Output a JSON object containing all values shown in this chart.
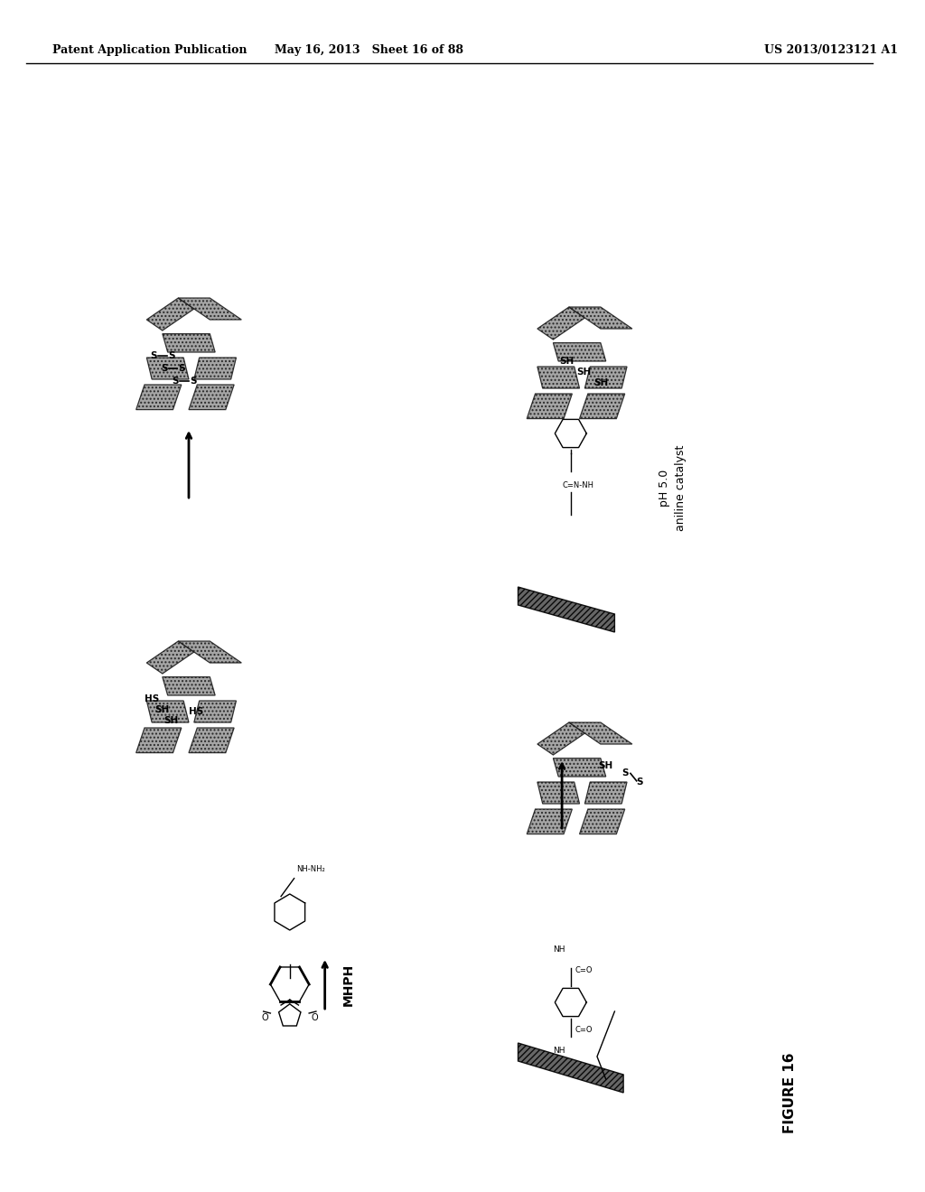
{
  "header_left": "Patent Application Publication",
  "header_mid": "May 16, 2013   Sheet 16 of 88",
  "header_right": "US 2013/0123121 A1",
  "figure_label": "FIGURE 16",
  "label_mhph": "MHPH",
  "label_ph": "pH 5.0",
  "label_aniline": "aniline catalyst",
  "background_color": "#ffffff",
  "text_color": "#000000",
  "bead_color": "#999999",
  "bead_edge_color": "#333333"
}
